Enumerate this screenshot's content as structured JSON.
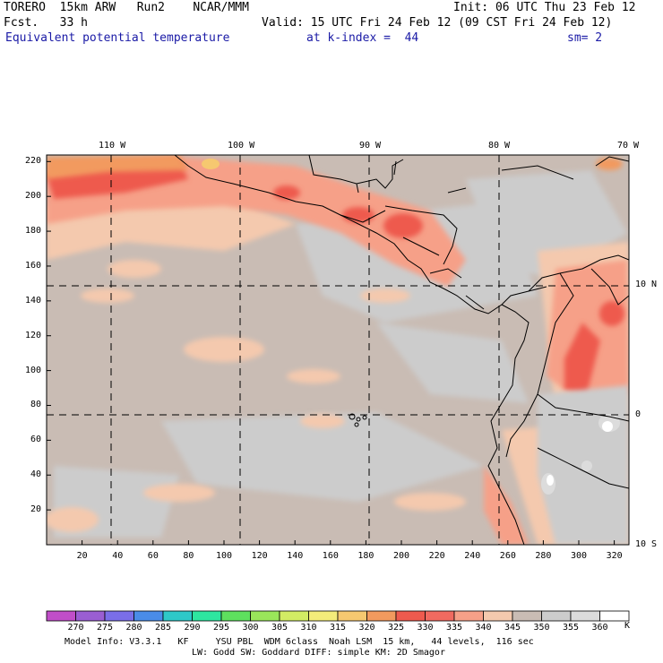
{
  "header": {
    "line1_left": "TORERO  15km ARW   Run2    NCAR/MMM",
    "line1_right": "Init: 06 UTC Thu 23 Feb 12",
    "line2_left": "Fcst.   33 h",
    "line2_right": "Valid: 15 UTC Fri 24 Feb 12 (09 CST Fri 24 Feb 12)",
    "field": "Equivalent potential temperature",
    "level": "at k-index =  44",
    "smooth": "sm= 2"
  },
  "map": {
    "lon_labels": [
      "110 W",
      "100 W",
      "90 W",
      "80 W",
      "70 W"
    ],
    "lat_labels": [
      "10 N",
      "0",
      "10 S"
    ],
    "x_ticks": [
      "20",
      "40",
      "60",
      "80",
      "100",
      "120",
      "140",
      "160",
      "180",
      "200",
      "220",
      "240",
      "260",
      "280",
      "300",
      "320"
    ],
    "y_ticks": [
      "220",
      "200",
      "180",
      "160",
      "140",
      "120",
      "100",
      "80",
      "60",
      "40",
      "20"
    ],
    "grid": "dashed lat/lon lines every 10 degrees"
  },
  "colorbar": {
    "levels": [
      "270",
      "275",
      "280",
      "285",
      "290",
      "295",
      "300",
      "305",
      "310",
      "315",
      "320",
      "325",
      "330",
      "335",
      "340",
      "345",
      "350",
      "355",
      "360"
    ],
    "unit": "K",
    "colors": [
      "#c04ec8",
      "#9a5ed2",
      "#7a6ee8",
      "#4a8ce8",
      "#2ec8c8",
      "#2ee6a0",
      "#5ee05e",
      "#9ae65a",
      "#d2ec64",
      "#f4ec7a",
      "#f6c870",
      "#f29a5e",
      "#ee5a4e",
      "#f06a60",
      "#f6a088",
      "#f4c9ae",
      "#c9bcb4",
      "#cccccc",
      "#dcdcdc",
      "#ffffff"
    ]
  },
  "footer": {
    "line1": "Model Info: V3.3.1   KF     YSU PBL  WDM 6class  Noah LSM  15 km,   44 levels,  116 sec",
    "line2": "LW: Godd SW: Goddard DIFF: simple KM: 2D Smagor"
  }
}
